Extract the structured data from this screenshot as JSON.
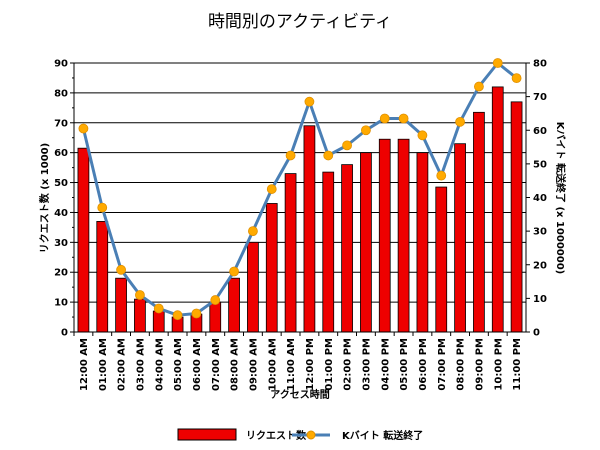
{
  "chart_data": {
    "type": "bar+line",
    "title": "時間別のアクティビティ",
    "xlabel": "アクセス時間",
    "ylabel_left": "リクエスト数 (x 1000)",
    "ylabel_right": "Kバイト 転送終了 (x 1000000)",
    "ylim_left": [
      0,
      90
    ],
    "ylim_right": [
      0,
      80
    ],
    "yticks_left": [
      "0",
      "10",
      "20",
      "30",
      "40",
      "50",
      "60",
      "70",
      "80",
      "90"
    ],
    "yticks_right": [
      "0",
      "10",
      "20",
      "30",
      "40",
      "50",
      "60",
      "70",
      "80"
    ],
    "grid": true,
    "legend_position": "bottom",
    "categories": [
      "12:00 AM",
      "01:00 AM",
      "02:00 AM",
      "03:00 AM",
      "04:00 AM",
      "05:00 AM",
      "06:00 AM",
      "07:00 AM",
      "08:00 AM",
      "09:00 AM",
      "10:00 AM",
      "11:00 AM",
      "12:00 PM",
      "01:00 PM",
      "02:00 PM",
      "03:00 PM",
      "04:00 PM",
      "05:00 PM",
      "06:00 PM",
      "07:00 PM",
      "08:00 PM",
      "09:00 PM",
      "10:00 PM",
      "11:00 PM"
    ],
    "series": [
      {
        "name": "リクエスト数",
        "kind": "bar",
        "axis": "left",
        "color": "#ee0000",
        "values": [
          61.5,
          37,
          18,
          11,
          7,
          5,
          6,
          10,
          18,
          30,
          43,
          53,
          69,
          53.5,
          56,
          60,
          64.5,
          64.5,
          60,
          48.5,
          63,
          73.5,
          82,
          77
        ]
      },
      {
        "name": "Kバイト 転送終了",
        "kind": "line",
        "axis": "right",
        "color": "#4a7fb5",
        "marker_color": "#ffaa00",
        "values": [
          60.5,
          37,
          18.5,
          11,
          7,
          5,
          5.5,
          9.5,
          18,
          30,
          42.5,
          52.5,
          68.5,
          52.5,
          55.5,
          60,
          63.5,
          63.5,
          58.5,
          46.5,
          62.5,
          73,
          80,
          75.5
        ]
      }
    ]
  }
}
